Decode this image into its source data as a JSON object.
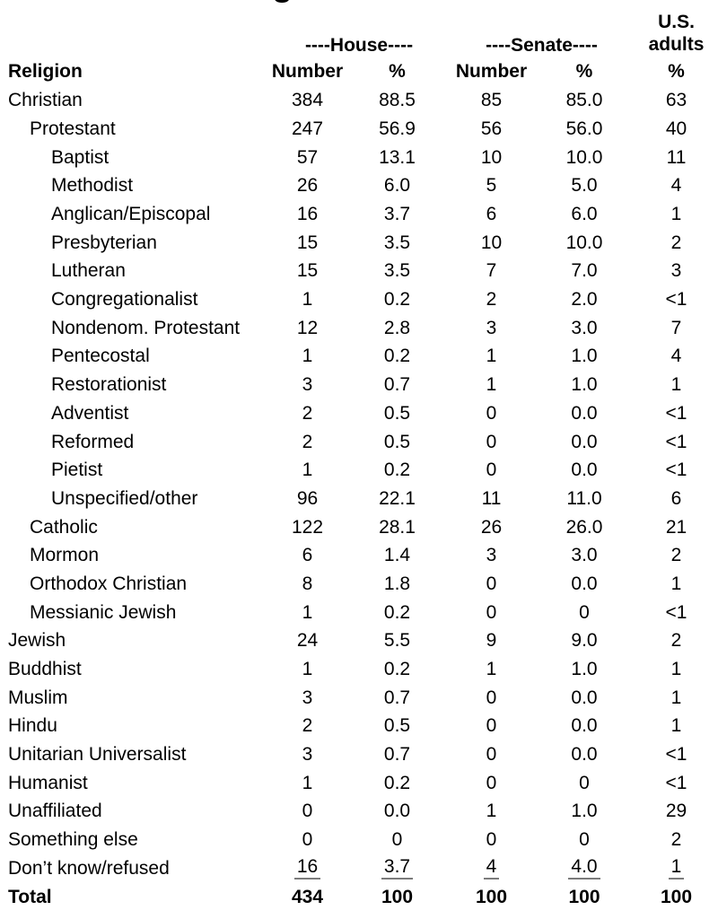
{
  "cropped_title": {
    "partial_glyph": "g"
  },
  "chart_data": {
    "type": "table",
    "title": "",
    "header": {
      "house_group": "----House----",
      "senate_group": "----Senate----",
      "us_line1": "U.S.",
      "us_line2": "adults",
      "religion": "Religion",
      "number": "Number",
      "pct": "%"
    },
    "columns": [
      "Religion",
      "House Number",
      "House %",
      "Senate Number",
      "Senate %",
      "U.S. adults %"
    ],
    "rows": [
      {
        "label": "Christian",
        "indent": 0,
        "house_number": "384",
        "house_pct": "88.5",
        "senate_number": "85",
        "senate_pct": "85.0",
        "us_pct": "63"
      },
      {
        "label": "Protestant",
        "indent": 1,
        "house_number": "247",
        "house_pct": "56.9",
        "senate_number": "56",
        "senate_pct": "56.0",
        "us_pct": "40"
      },
      {
        "label": "Baptist",
        "indent": 2,
        "house_number": "57",
        "house_pct": "13.1",
        "senate_number": "10",
        "senate_pct": "10.0",
        "us_pct": "11"
      },
      {
        "label": "Methodist",
        "indent": 2,
        "house_number": "26",
        "house_pct": "6.0",
        "senate_number": "5",
        "senate_pct": "5.0",
        "us_pct": "4"
      },
      {
        "label": "Anglican/Episcopal",
        "indent": 2,
        "house_number": "16",
        "house_pct": "3.7",
        "senate_number": "6",
        "senate_pct": "6.0",
        "us_pct": "1"
      },
      {
        "label": "Presbyterian",
        "indent": 2,
        "house_number": "15",
        "house_pct": "3.5",
        "senate_number": "10",
        "senate_pct": "10.0",
        "us_pct": "2"
      },
      {
        "label": "Lutheran",
        "indent": 2,
        "house_number": "15",
        "house_pct": "3.5",
        "senate_number": "7",
        "senate_pct": "7.0",
        "us_pct": "3"
      },
      {
        "label": "Congregationalist",
        "indent": 2,
        "house_number": "1",
        "house_pct": "0.2",
        "senate_number": "2",
        "senate_pct": "2.0",
        "us_pct": "<1"
      },
      {
        "label": "Nondenom. Protestant",
        "indent": 2,
        "house_number": "12",
        "house_pct": "2.8",
        "senate_number": "3",
        "senate_pct": "3.0",
        "us_pct": "7"
      },
      {
        "label": "Pentecostal",
        "indent": 2,
        "house_number": "1",
        "house_pct": "0.2",
        "senate_number": "1",
        "senate_pct": "1.0",
        "us_pct": "4"
      },
      {
        "label": "Restorationist",
        "indent": 2,
        "house_number": "3",
        "house_pct": "0.7",
        "senate_number": "1",
        "senate_pct": "1.0",
        "us_pct": "1"
      },
      {
        "label": "Adventist",
        "indent": 2,
        "house_number": "2",
        "house_pct": "0.5",
        "senate_number": "0",
        "senate_pct": "0.0",
        "us_pct": "<1"
      },
      {
        "label": "Reformed",
        "indent": 2,
        "house_number": "2",
        "house_pct": "0.5",
        "senate_number": "0",
        "senate_pct": "0.0",
        "us_pct": "<1"
      },
      {
        "label": "Pietist",
        "indent": 2,
        "house_number": "1",
        "house_pct": "0.2",
        "senate_number": "0",
        "senate_pct": "0.0",
        "us_pct": "<1"
      },
      {
        "label": "Unspecified/other",
        "indent": 2,
        "house_number": "96",
        "house_pct": "22.1",
        "senate_number": "11",
        "senate_pct": "11.0",
        "us_pct": "6"
      },
      {
        "label": "Catholic",
        "indent": 1,
        "house_number": "122",
        "house_pct": "28.1",
        "senate_number": "26",
        "senate_pct": "26.0",
        "us_pct": "21"
      },
      {
        "label": "Mormon",
        "indent": 1,
        "house_number": "6",
        "house_pct": "1.4",
        "senate_number": "3",
        "senate_pct": "3.0",
        "us_pct": "2"
      },
      {
        "label": "Orthodox Christian",
        "indent": 1,
        "house_number": "8",
        "house_pct": "1.8",
        "senate_number": "0",
        "senate_pct": "0.0",
        "us_pct": "1"
      },
      {
        "label": "Messianic Jewish",
        "indent": 1,
        "house_number": "1",
        "house_pct": "0.2",
        "senate_number": "0",
        "senate_pct": "0",
        "us_pct": "<1"
      },
      {
        "label": "Jewish",
        "indent": 0,
        "house_number": "24",
        "house_pct": "5.5",
        "senate_number": "9",
        "senate_pct": "9.0",
        "us_pct": "2"
      },
      {
        "label": "Buddhist",
        "indent": 0,
        "house_number": "1",
        "house_pct": "0.2",
        "senate_number": "1",
        "senate_pct": "1.0",
        "us_pct": "1"
      },
      {
        "label": "Muslim",
        "indent": 0,
        "house_number": "3",
        "house_pct": "0.7",
        "senate_number": "0",
        "senate_pct": "0.0",
        "us_pct": "1"
      },
      {
        "label": "Hindu",
        "indent": 0,
        "house_number": "2",
        "house_pct": "0.5",
        "senate_number": "0",
        "senate_pct": "0.0",
        "us_pct": "1"
      },
      {
        "label": "Unitarian Universalist",
        "indent": 0,
        "house_number": "3",
        "house_pct": "0.7",
        "senate_number": "0",
        "senate_pct": "0.0",
        "us_pct": "<1"
      },
      {
        "label": "Humanist",
        "indent": 0,
        "house_number": "1",
        "house_pct": "0.2",
        "senate_number": "0",
        "senate_pct": "0",
        "us_pct": "<1"
      },
      {
        "label": "Unaffiliated",
        "indent": 0,
        "house_number": "0",
        "house_pct": "0.0",
        "senate_number": "1",
        "senate_pct": "1.0",
        "us_pct": "29"
      },
      {
        "label": "Something else",
        "indent": 0,
        "house_number": "0",
        "house_pct": "0",
        "senate_number": "0",
        "senate_pct": "0",
        "us_pct": "2"
      },
      {
        "label": "Don’t know/refused",
        "indent": 0,
        "underline": true,
        "house_number": "16",
        "house_pct": "3.7",
        "senate_number": "4",
        "senate_pct": "4.0",
        "us_pct": "1"
      },
      {
        "label": "Total",
        "indent": 0,
        "bold": true,
        "house_number": "434",
        "house_pct": "100",
        "senate_number": "100",
        "senate_pct": "100",
        "us_pct": "100"
      }
    ],
    "colors": {
      "text": "#000000",
      "underline": "#7b7b7b",
      "background": "#ffffff"
    }
  }
}
